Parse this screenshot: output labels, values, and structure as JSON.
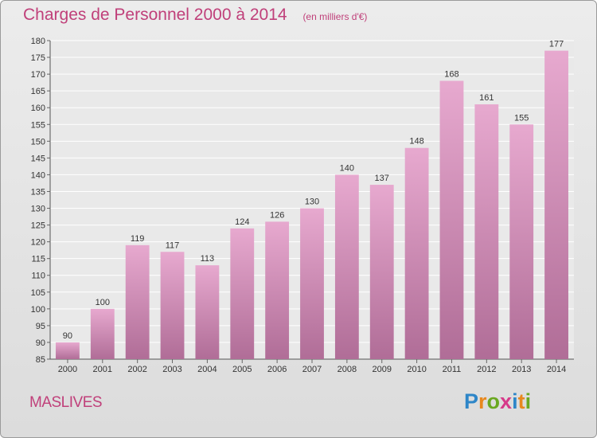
{
  "header": {
    "title": "Charges de Personnel 2000 à 2014",
    "unit": "(en milliers d'€)"
  },
  "footer": {
    "town": "MASLIVES",
    "logo_letters": [
      "P",
      "r",
      "o",
      "x",
      "i",
      "t",
      "i"
    ],
    "logo_colors": [
      "#2e86c8",
      "#e8881e",
      "#6aa821",
      "#d63a8a",
      "#2e86c8",
      "#e8881e",
      "#6aa821"
    ]
  },
  "colors": {
    "bar_top": "#e7a9cf",
    "bar_bottom": "#b06d97",
    "text_accent": "#c0407a"
  },
  "chart_data": {
    "type": "bar",
    "title": "Charges de Personnel 2000 à 2014",
    "subtitle": "(en milliers d'€)",
    "categories": [
      "2000",
      "2001",
      "2002",
      "2003",
      "2004",
      "2005",
      "2006",
      "2007",
      "2008",
      "2009",
      "2010",
      "2011",
      "2012",
      "2013",
      "2014"
    ],
    "values": [
      90,
      100,
      119,
      117,
      113,
      124,
      126,
      130,
      140,
      137,
      148,
      168,
      161,
      155,
      177
    ],
    "ylim": [
      85,
      180
    ],
    "yticks": [
      85,
      90,
      95,
      100,
      105,
      110,
      115,
      120,
      125,
      130,
      135,
      140,
      145,
      150,
      155,
      160,
      165,
      170,
      175,
      180
    ],
    "grid": true,
    "legend": "none"
  }
}
